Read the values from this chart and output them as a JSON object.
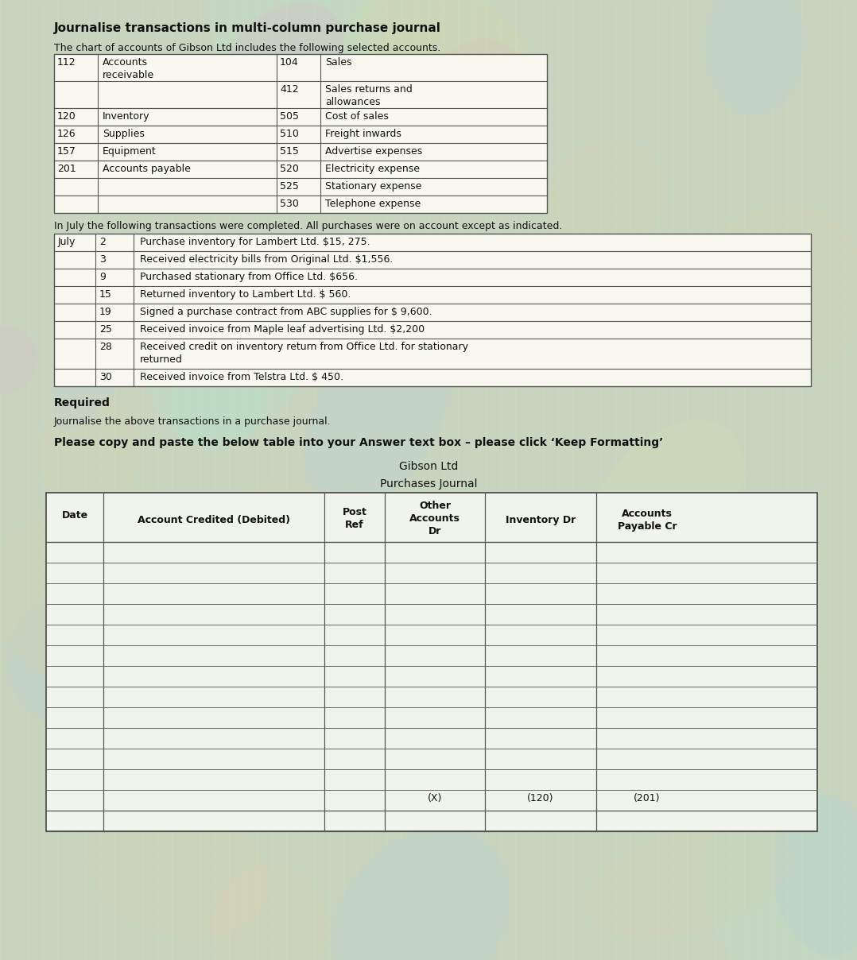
{
  "title": "Journalise transactions in multi-column purchase journal",
  "subtitle": "The chart of accounts of Gibson Ltd includes the following selected accounts.",
  "page_background": "#c8d4be",
  "table_bg": "#ffffff",
  "accounts_table": {
    "left_col": [
      [
        "112",
        "Accounts\nreceivable"
      ],
      [
        "120",
        "Inventory"
      ],
      [
        "126",
        "Supplies"
      ],
      [
        "157",
        "Equipment"
      ],
      [
        "201",
        "Accounts payable"
      ]
    ],
    "right_col": [
      [
        "104",
        "Sales"
      ],
      [
        "412",
        "Sales returns and\nallowances"
      ],
      [
        "505",
        "Cost of sales"
      ],
      [
        "510",
        "Freight inwards"
      ],
      [
        "515",
        "Advertise expenses"
      ],
      [
        "520",
        "Electricity expense"
      ],
      [
        "525",
        "Stationary expense"
      ],
      [
        "530",
        "Telephone expense"
      ]
    ]
  },
  "transactions_intro": "In July the following transactions were completed. All purchases were on account except as indicated.",
  "transactions": [
    [
      "July",
      "2",
      "Purchase inventory for Lambert Ltd. $15, 275."
    ],
    [
      "",
      "3",
      "Received electricity bills from Original Ltd. $1,556."
    ],
    [
      "",
      "9",
      "Purchased stationary from Office Ltd. $656."
    ],
    [
      "",
      "15",
      "Returned inventory to Lambert Ltd. $ 560."
    ],
    [
      "",
      "19",
      "Signed a purchase contract from ABC supplies for $ 9,600."
    ],
    [
      "",
      "25",
      "Received invoice from Maple leaf advertising Ltd. $2,200"
    ],
    [
      "",
      "28",
      "Received credit on inventory return from Office Ltd. for stationary\nreturned"
    ],
    [
      "",
      "30",
      "Received invoice from Telstra Ltd. $ 450."
    ]
  ],
  "required_text": "Required",
  "journalise_text": "Journalise the above transactions in a purchase journal.",
  "please_text": "Please copy and paste the below table into your Answer text box – please click ‘Keep Formatting’",
  "company_name": "Gibson Ltd",
  "journal_title": "Purchases Journal",
  "journal_footer": [
    "",
    "",
    "",
    "(X)",
    "(120)",
    "(201)"
  ],
  "num_data_rows": 12
}
